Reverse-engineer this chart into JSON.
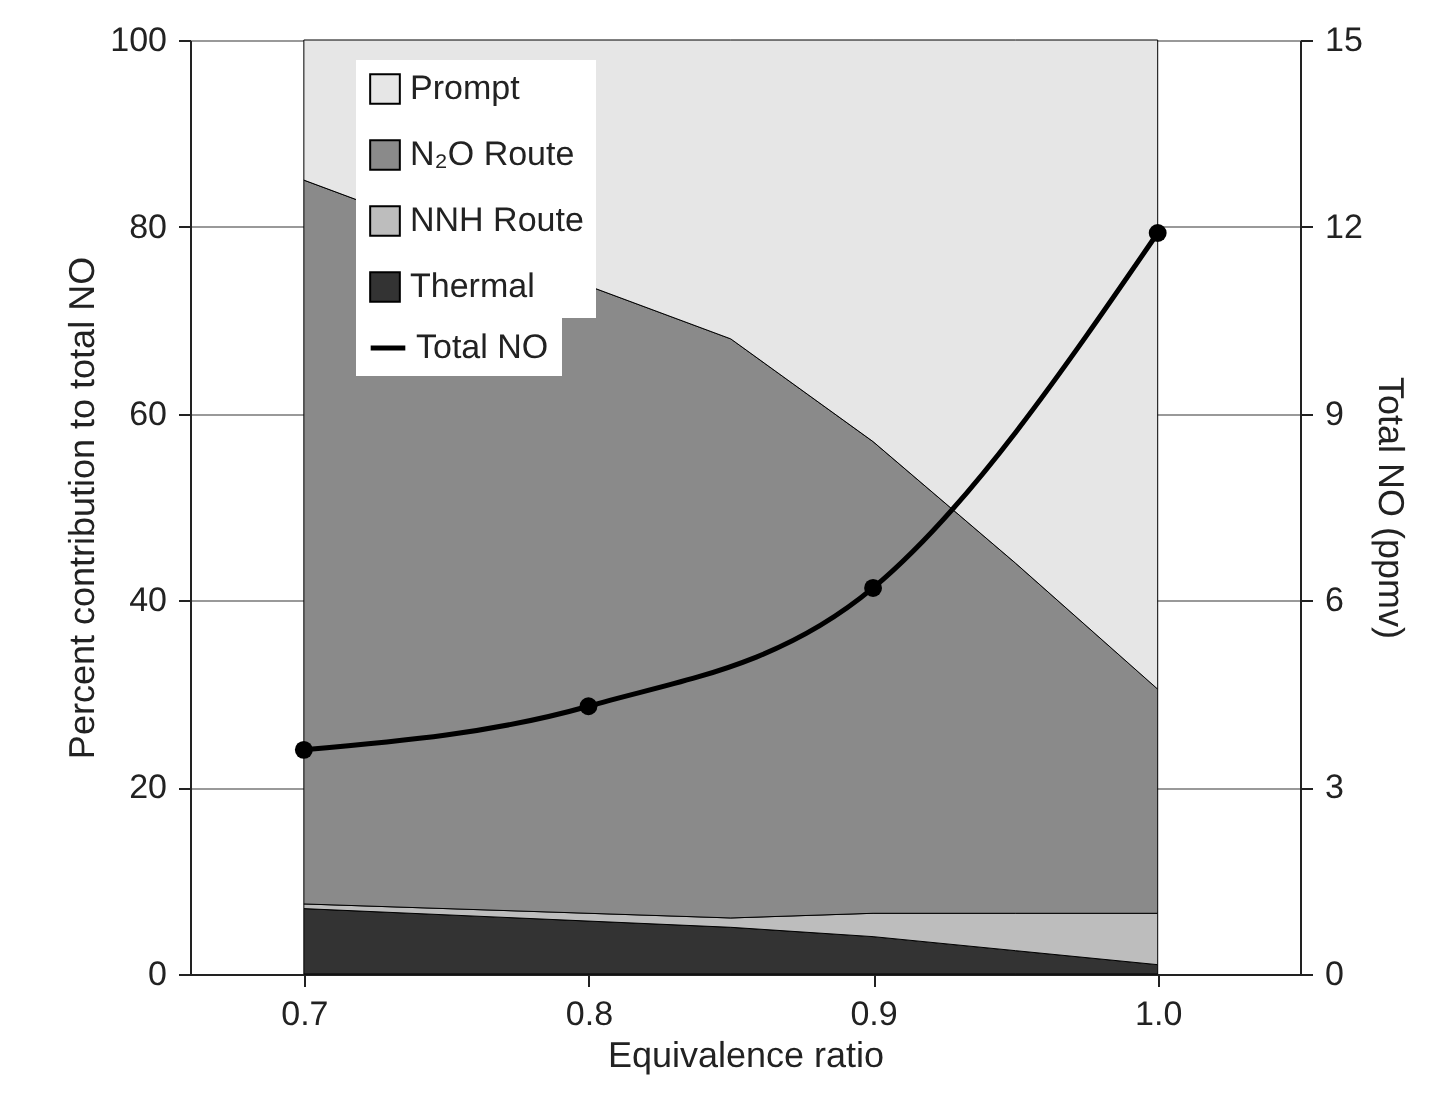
{
  "chart_data": {
    "type": "area",
    "stacked": true,
    "xlabel": "Equivalence ratio",
    "ylabel": "Percent contribution to total NO",
    "y2label": "Total NO (ppmv)",
    "x": [
      0.7,
      0.85,
      0.9,
      0.95,
      1.0
    ],
    "xlim": [
      0.66,
      1.05
    ],
    "xticks": [
      0.7,
      0.8,
      0.9,
      {
        "value": 1.0,
        "label": "1.0"
      }
    ],
    "ylim": [
      0,
      100
    ],
    "yticks": [
      0,
      20,
      40,
      60,
      80,
      100
    ],
    "y2lim": [
      0,
      15
    ],
    "y2ticks": [
      0,
      3,
      6,
      9,
      12,
      15
    ],
    "grid": "y",
    "legend": "top left",
    "series": [
      {
        "name": "Thermal",
        "color": "#333333",
        "values": [
          7,
          5,
          4,
          2.5,
          1
        ]
      },
      {
        "name": "NNH Route",
        "color": "#bdbdbd",
        "values": [
          0.5,
          1,
          2.5,
          4,
          5.5
        ]
      },
      {
        "name": "N₂O Route",
        "color": "#8a8a8a",
        "values": [
          77.5,
          62,
          50.5,
          37.5,
          24
        ]
      },
      {
        "name": "Prompt",
        "color": "#e6e6e6",
        "values": [
          15,
          32,
          43,
          56,
          69.5
        ]
      },
      {
        "name": "Total NO",
        "type": "line",
        "axis": "y2",
        "color": "#000000",
        "marker": "circle",
        "line_style": "solid",
        "x": [
          0.7,
          0.8,
          0.9,
          1.0
        ],
        "values": [
          3.6,
          4.3,
          6.2,
          11.9
        ]
      }
    ]
  }
}
